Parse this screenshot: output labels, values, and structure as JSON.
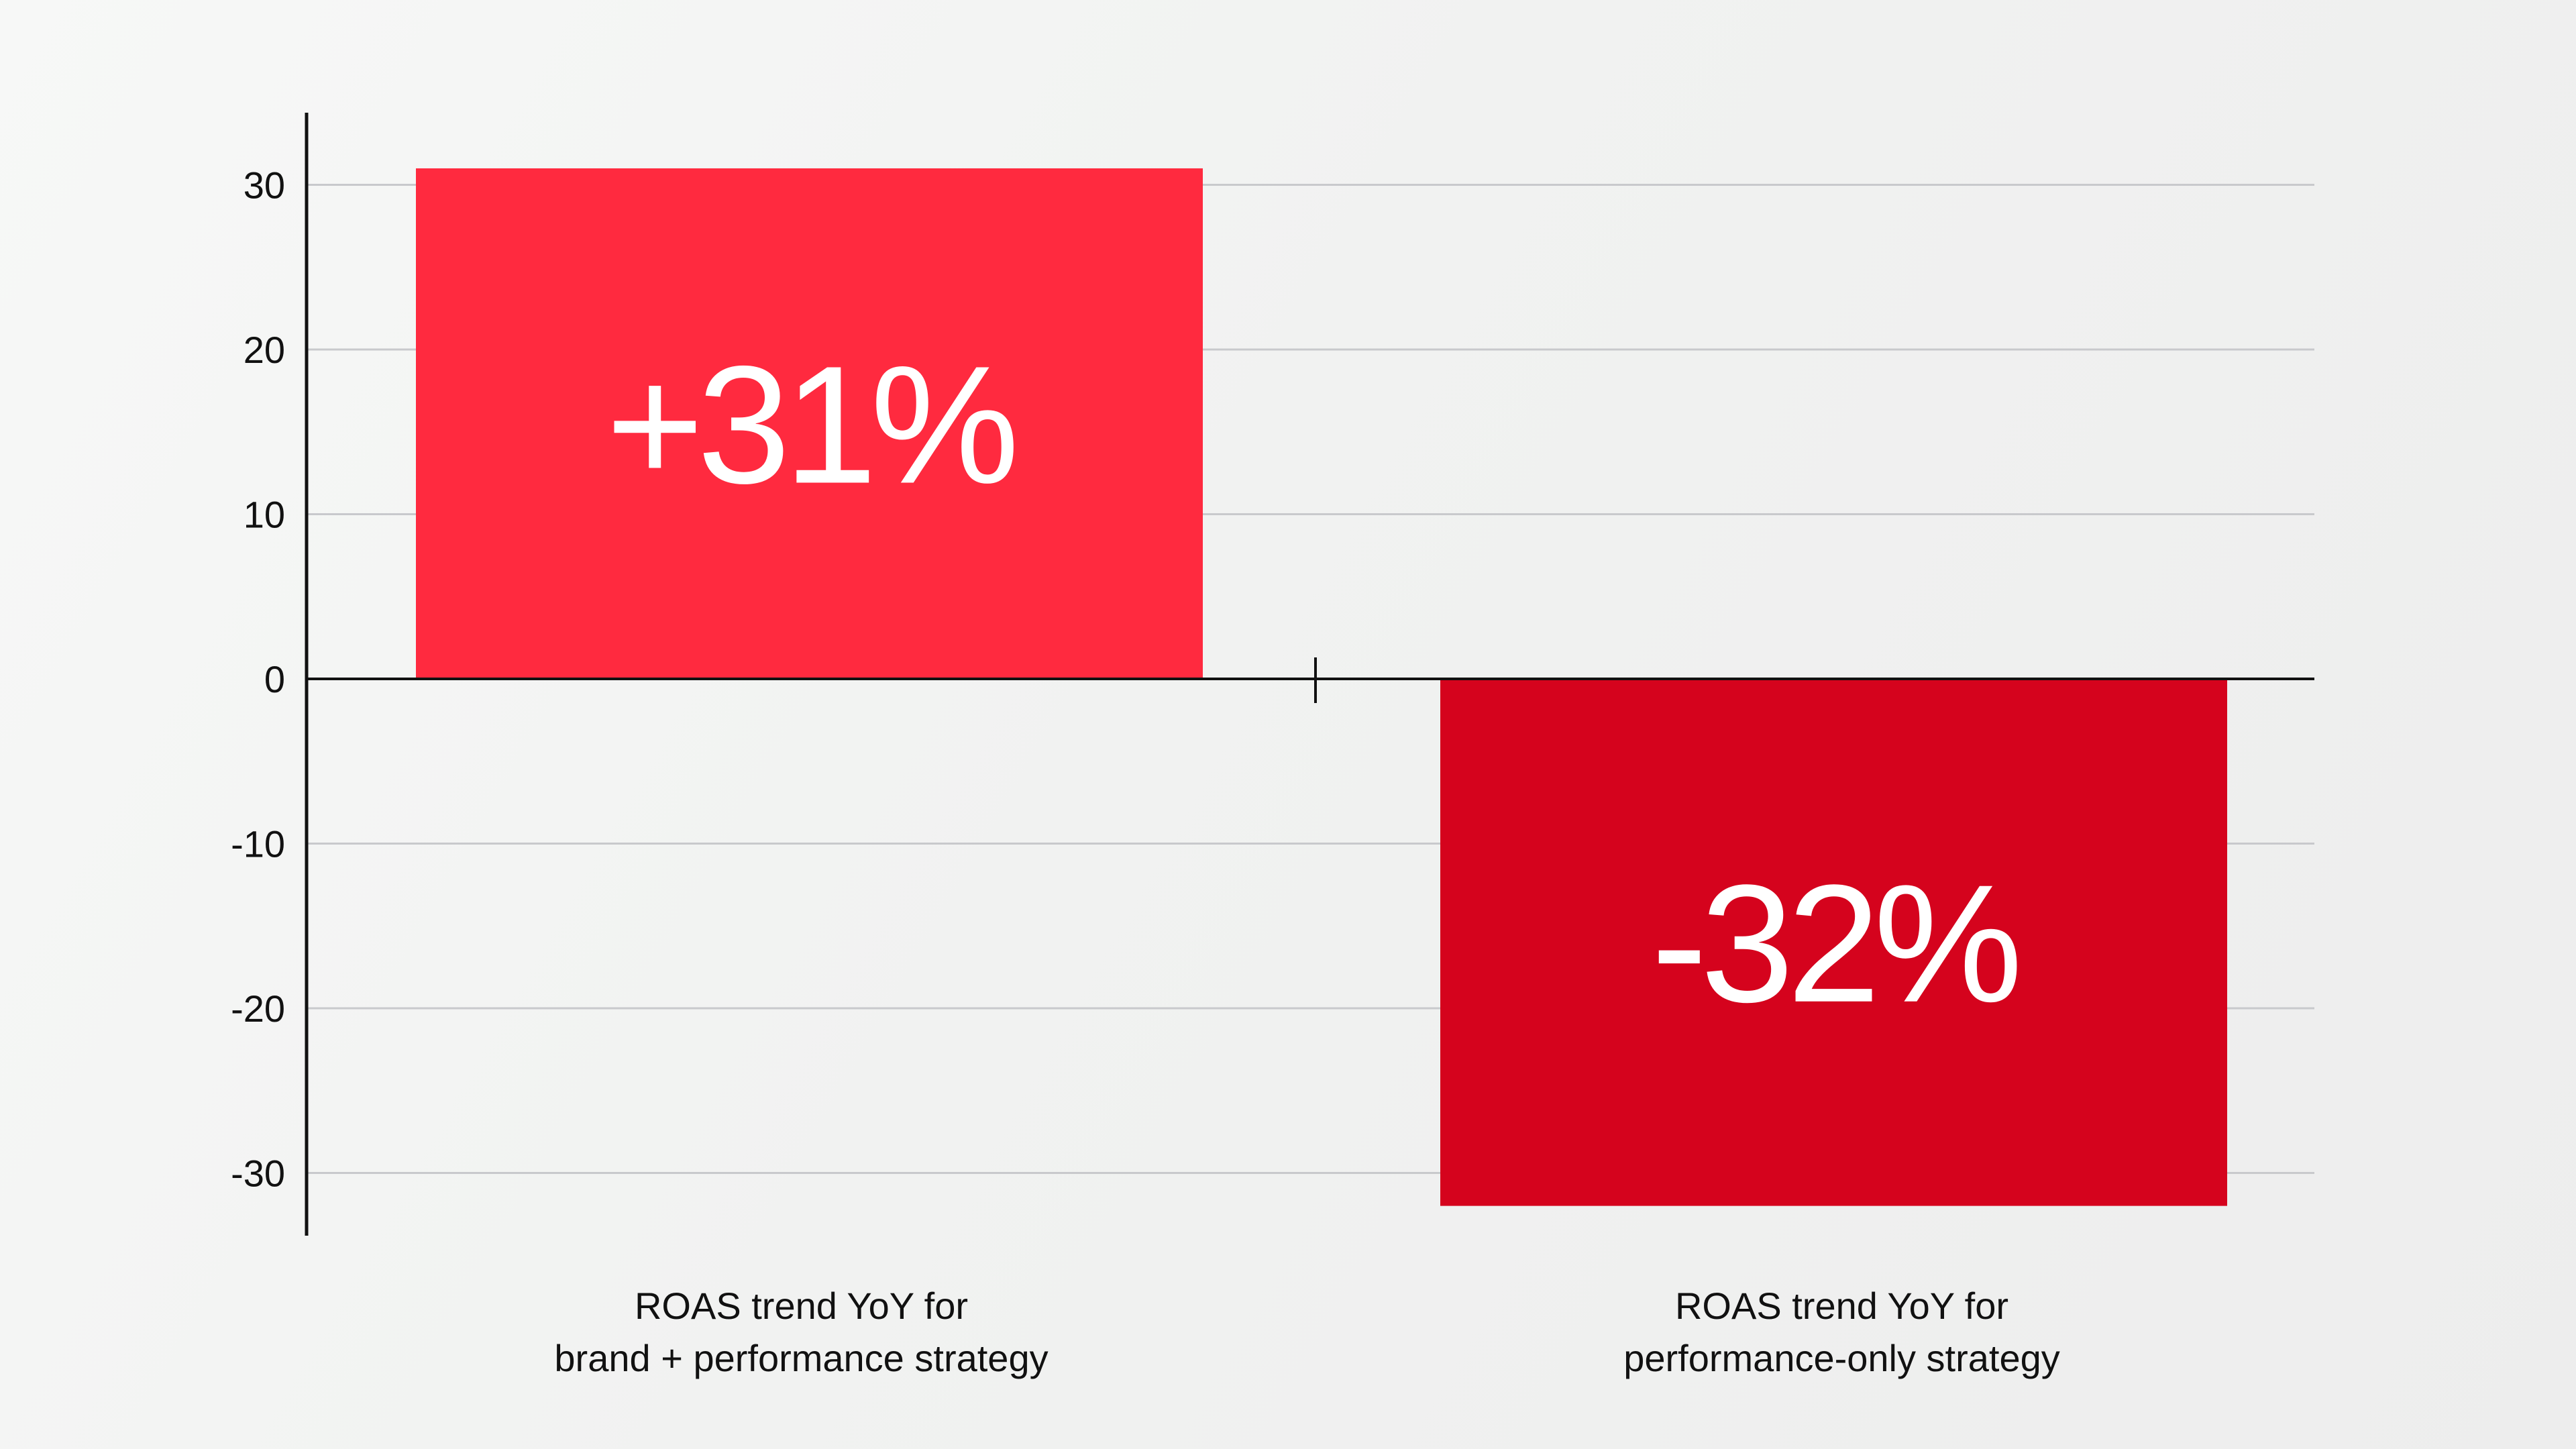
{
  "chart_data": {
    "type": "bar",
    "categories": [
      [
        "ROAS trend YoY for",
        "brand + performance strategy"
      ],
      [
        "ROAS trend YoY for",
        "performance-only strategy"
      ]
    ],
    "values": [
      31,
      -32
    ],
    "data_labels": [
      "+31%",
      "-32%"
    ],
    "colors": [
      "#ff2a3f",
      "#d5031d"
    ],
    "y_ticks": [
      30,
      20,
      10,
      0,
      -10,
      -20,
      -30
    ],
    "ylim": [
      -34,
      34
    ],
    "grid": true,
    "grid_color": "#c8c9cc",
    "axis_color": "#111111",
    "label_color": "#ffffff"
  }
}
